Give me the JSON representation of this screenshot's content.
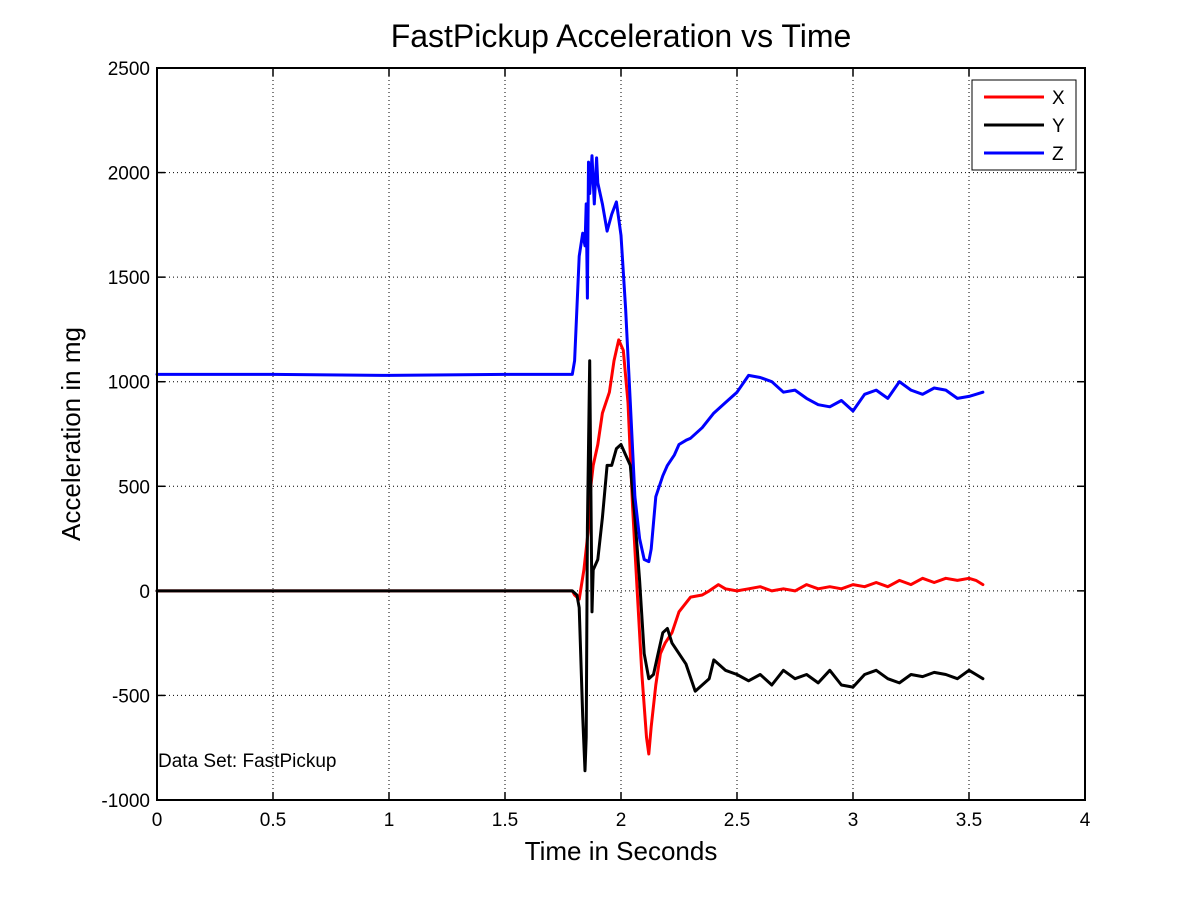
{
  "chart_data": {
    "type": "line",
    "title": "FastPickup Acceleration vs Time",
    "xlabel": "Time in Seconds",
    "ylabel": "Acceleration in mg",
    "xlim": [
      0,
      4
    ],
    "ylim": [
      -1000,
      2500
    ],
    "xticks": [
      0,
      0.5,
      1,
      1.5,
      2,
      2.5,
      3,
      3.5,
      4
    ],
    "xtick_labels": [
      "0",
      "0.5",
      "1",
      "1.5",
      "2",
      "2.5",
      "3",
      "3.5",
      "4"
    ],
    "yticks": [
      -1000,
      -500,
      0,
      500,
      1000,
      1500,
      2000,
      2500
    ],
    "ytick_labels": [
      "-1000",
      "-500",
      "0",
      "500",
      "1000",
      "1500",
      "2000",
      "2500"
    ],
    "grid": true,
    "legend_position": "top-right",
    "annotation": "Data Set: FastPickup",
    "series": [
      {
        "name": "X",
        "color": "#ff0000",
        "x": [
          0,
          0.5,
          1.0,
          1.5,
          1.79,
          1.8,
          1.82,
          1.84,
          1.86,
          1.87,
          1.88,
          1.9,
          1.92,
          1.95,
          1.97,
          1.99,
          2.01,
          2.03,
          2.05,
          2.07,
          2.09,
          2.11,
          2.12,
          2.13,
          2.15,
          2.17,
          2.19,
          2.22,
          2.25,
          2.3,
          2.35,
          2.38,
          2.42,
          2.45,
          2.5,
          2.55,
          2.6,
          2.65,
          2.7,
          2.75,
          2.8,
          2.85,
          2.9,
          2.95,
          3.0,
          3.05,
          3.1,
          3.15,
          3.2,
          3.25,
          3.3,
          3.35,
          3.4,
          3.45,
          3.5,
          3.53,
          3.56
        ],
        "y": [
          0,
          0,
          0,
          0,
          0,
          -20,
          -40,
          100,
          300,
          500,
          600,
          700,
          850,
          950,
          1100,
          1200,
          1150,
          900,
          400,
          0,
          -400,
          -700,
          -780,
          -650,
          -450,
          -300,
          -250,
          -200,
          -100,
          -30,
          -20,
          0,
          30,
          10,
          0,
          10,
          20,
          0,
          10,
          0,
          30,
          10,
          20,
          10,
          30,
          20,
          40,
          20,
          50,
          30,
          60,
          40,
          60,
          50,
          60,
          50,
          30
        ]
      },
      {
        "name": "Y",
        "color": "#000000",
        "x": [
          0,
          0.5,
          1.0,
          1.5,
          1.79,
          1.81,
          1.82,
          1.835,
          1.845,
          1.85,
          1.855,
          1.865,
          1.875,
          1.88,
          1.9,
          1.92,
          1.94,
          1.96,
          1.98,
          2.0,
          2.02,
          2.04,
          2.06,
          2.08,
          2.1,
          2.12,
          2.14,
          2.16,
          2.18,
          2.2,
          2.22,
          2.25,
          2.28,
          2.32,
          2.35,
          2.38,
          2.4,
          2.45,
          2.5,
          2.55,
          2.6,
          2.65,
          2.7,
          2.75,
          2.8,
          2.85,
          2.9,
          2.95,
          3.0,
          3.05,
          3.1,
          3.15,
          3.2,
          3.25,
          3.3,
          3.35,
          3.4,
          3.45,
          3.5,
          3.53,
          3.56
        ],
        "y": [
          0,
          0,
          0,
          0,
          0,
          -20,
          -80,
          -600,
          -860,
          -700,
          300,
          1100,
          -100,
          100,
          150,
          350,
          600,
          600,
          680,
          700,
          650,
          600,
          350,
          50,
          -300,
          -420,
          -400,
          -300,
          -200,
          -180,
          -250,
          -300,
          -350,
          -480,
          -450,
          -420,
          -330,
          -380,
          -400,
          -430,
          -400,
          -450,
          -380,
          -420,
          -400,
          -440,
          -380,
          -450,
          -460,
          -400,
          -380,
          -420,
          -440,
          -400,
          -410,
          -390,
          -400,
          -420,
          -380,
          -400,
          -420
        ]
      },
      {
        "name": "Z",
        "color": "#0000ff",
        "x": [
          0,
          0.5,
          1.0,
          1.5,
          1.79,
          1.8,
          1.82,
          1.835,
          1.845,
          1.85,
          1.855,
          1.86,
          1.865,
          1.875,
          1.885,
          1.895,
          1.9,
          1.92,
          1.94,
          1.96,
          1.98,
          2.0,
          2.02,
          2.04,
          2.06,
          2.08,
          2.1,
          2.12,
          2.13,
          2.15,
          2.18,
          2.2,
          2.23,
          2.25,
          2.28,
          2.3,
          2.35,
          2.4,
          2.45,
          2.5,
          2.55,
          2.6,
          2.65,
          2.7,
          2.75,
          2.8,
          2.85,
          2.9,
          2.95,
          3.0,
          3.05,
          3.1,
          3.15,
          3.2,
          3.25,
          3.3,
          3.35,
          3.4,
          3.45,
          3.5,
          3.53,
          3.56
        ],
        "y": [
          1035,
          1035,
          1030,
          1035,
          1035,
          1100,
          1600,
          1710,
          1650,
          1850,
          1400,
          2050,
          1900,
          2080,
          1850,
          2070,
          1950,
          1850,
          1720,
          1800,
          1860,
          1700,
          1350,
          900,
          450,
          250,
          150,
          140,
          200,
          450,
          550,
          600,
          650,
          700,
          720,
          730,
          780,
          850,
          900,
          950,
          1030,
          1020,
          1000,
          950,
          960,
          920,
          890,
          880,
          910,
          860,
          940,
          960,
          920,
          1000,
          960,
          940,
          970,
          960,
          920,
          930,
          940,
          950
        ]
      }
    ]
  }
}
